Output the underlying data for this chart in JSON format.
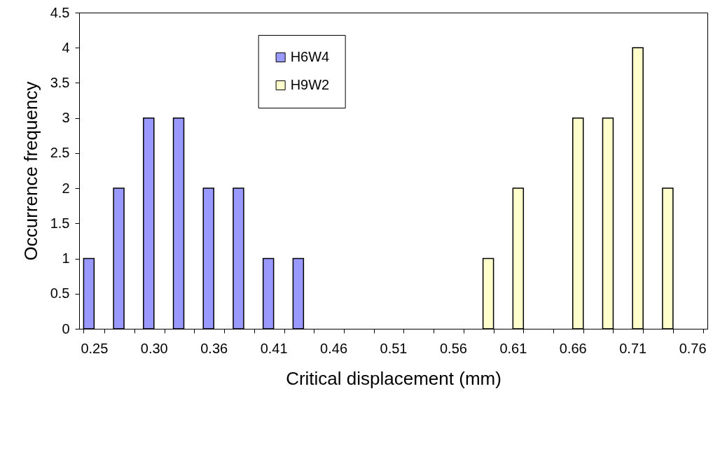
{
  "chart_data": {
    "type": "bar",
    "xlabel": "Critical displacement (mm)",
    "ylabel": "Occurrence frequency",
    "categories": [
      "0.25",
      null,
      "0.30",
      null,
      "0.36",
      null,
      "0.41",
      null,
      "0.46",
      null,
      "0.51",
      null,
      "0.56",
      null,
      "0.61",
      null,
      "0.66",
      null,
      "0.71",
      null,
      "0.76"
    ],
    "series": [
      {
        "name": "H6W4",
        "color": "#9999ff",
        "values": [
          1,
          2,
          3,
          3,
          2,
          2,
          1,
          1,
          null,
          null,
          null,
          null,
          null,
          null,
          null,
          null,
          null,
          null,
          null,
          null,
          null
        ]
      },
      {
        "name": "H9W2",
        "color": "#ffffcc",
        "values": [
          null,
          null,
          null,
          null,
          null,
          null,
          null,
          null,
          null,
          null,
          null,
          null,
          null,
          1,
          2,
          null,
          3,
          3,
          4,
          2,
          null
        ]
      }
    ],
    "ylim": [
      0,
      4.5
    ],
    "yticks": [
      0,
      0.5,
      1,
      1.5,
      2,
      2.5,
      3,
      3.5,
      4,
      4.5
    ],
    "grid": false,
    "legend": "top"
  }
}
